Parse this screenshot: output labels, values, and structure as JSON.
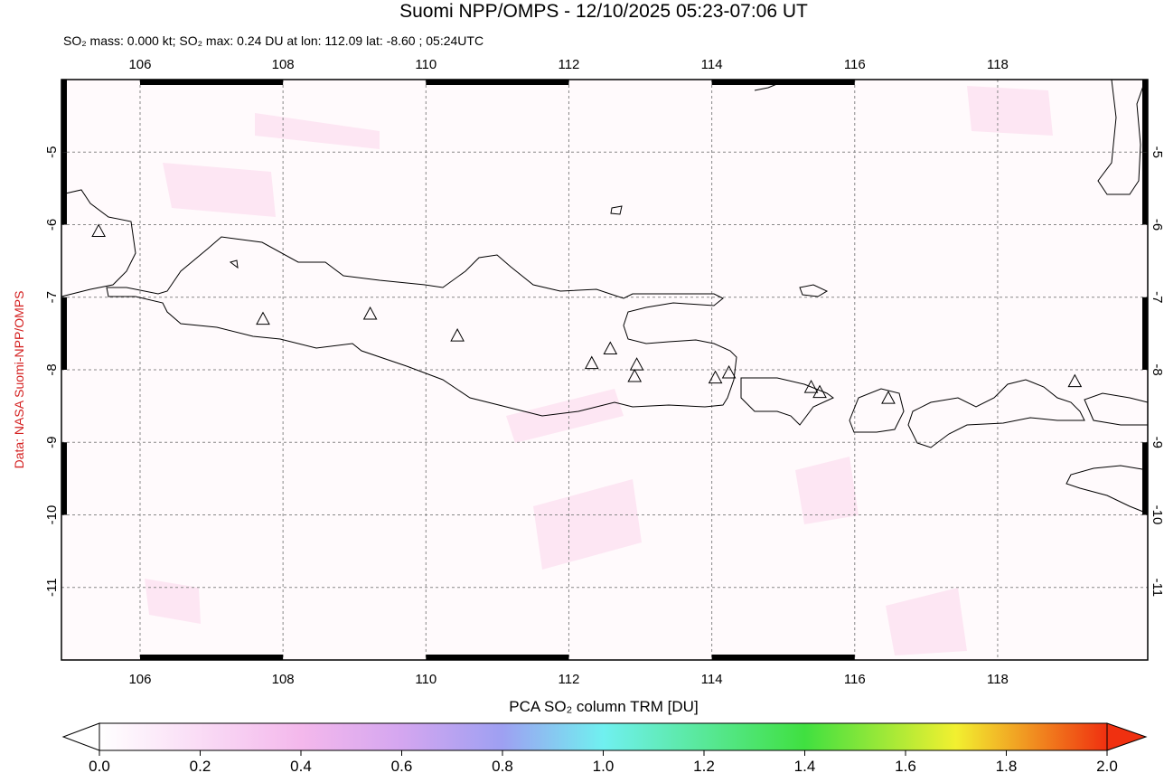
{
  "header": {
    "title": "Suomi NPP/OMPS - 12/10/2025 05:23-07:06 UT",
    "subtitle": "SO₂ mass: 0.000 kt; SO₂ max: 0.24 DU at lon: 112.09 lat: -8.60 ; 05:24UTC"
  },
  "map": {
    "lonlim": [
      104.9,
      120.1
    ],
    "latlim": [
      -12,
      -4
    ],
    "lonticks": [
      106,
      108,
      110,
      112,
      114,
      116,
      118
    ],
    "latticks": [
      -5,
      -6,
      -7,
      -8,
      -9,
      -10,
      -11
    ],
    "grid": true,
    "volcanoes": {
      "lon": [
        105.42,
        107.72,
        109.22,
        110.44,
        112.32,
        112.58,
        112.95,
        112.92,
        114.05,
        114.24,
        115.39,
        115.51,
        116.47,
        119.08
      ],
      "lat": [
        -6.1,
        -7.31,
        -7.24,
        -7.54,
        -7.92,
        -7.72,
        -7.94,
        -8.1,
        -8.12,
        -8.05,
        -8.25,
        -8.32,
        -8.4,
        -8.17
      ]
    }
  },
  "credit": "Data: NASA Suomi-NPP/OMPS",
  "colorbar": {
    "label": "PCA SO₂ column TRM [DU]",
    "lim": [
      0,
      2
    ],
    "ticks": [
      {
        "value": 0,
        "label": "0.0"
      },
      0.2,
      0.4,
      0.6,
      0.8,
      {
        "value": 1,
        "label": "1.0"
      },
      1.2,
      1.4,
      1.6,
      1.8,
      {
        "value": 2,
        "label": "2.0"
      }
    ]
  }
}
